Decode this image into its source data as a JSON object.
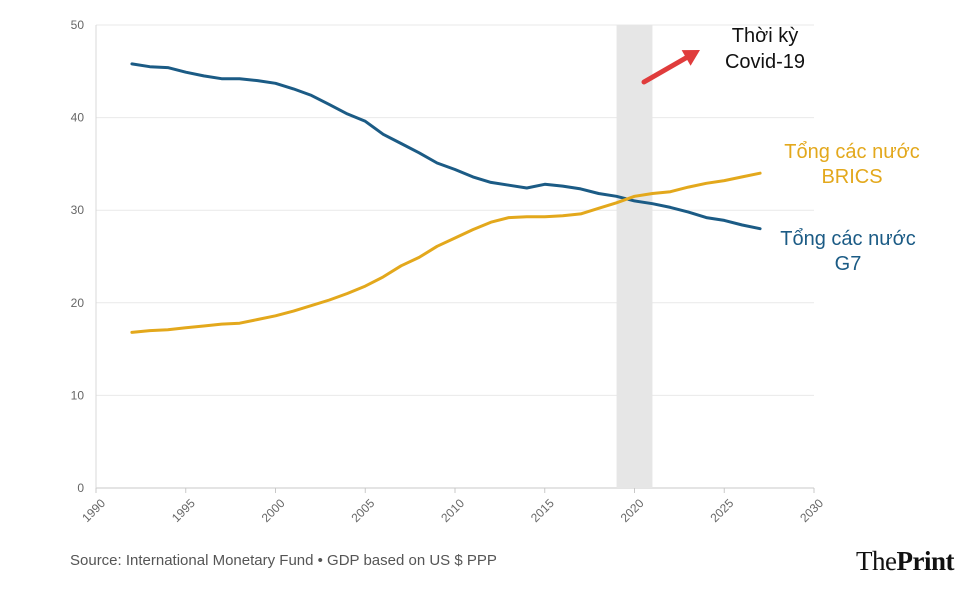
{
  "chart_data": {
    "type": "line",
    "xlim": [
      1990,
      2030
    ],
    "ylim": [
      0,
      50
    ],
    "x_ticks": [
      "1990",
      "1995",
      "2000",
      "2005",
      "2010",
      "2015",
      "2020",
      "2025",
      "2030"
    ],
    "y_ticks": [
      "0",
      "10",
      "20",
      "30",
      "40",
      "50"
    ],
    "grid": true,
    "series": [
      {
        "name": "Tổng các nước G7",
        "label_lines": [
          "Tổng các nước",
          "G7"
        ],
        "color": "#1b5b85",
        "points": [
          [
            1992,
            45.8
          ],
          [
            1993,
            45.5
          ],
          [
            1994,
            45.4
          ],
          [
            1995,
            44.9
          ],
          [
            1996,
            44.5
          ],
          [
            1997,
            44.2
          ],
          [
            1998,
            44.2
          ],
          [
            1999,
            44.0
          ],
          [
            2000,
            43.7
          ],
          [
            2001,
            43.1
          ],
          [
            2002,
            42.4
          ],
          [
            2003,
            41.4
          ],
          [
            2004,
            40.4
          ],
          [
            2005,
            39.6
          ],
          [
            2006,
            38.2
          ],
          [
            2007,
            37.2
          ],
          [
            2008,
            36.2
          ],
          [
            2009,
            35.1
          ],
          [
            2010,
            34.4
          ],
          [
            2011,
            33.6
          ],
          [
            2012,
            33.0
          ],
          [
            2013,
            32.7
          ],
          [
            2014,
            32.4
          ],
          [
            2015,
            32.8
          ],
          [
            2016,
            32.6
          ],
          [
            2017,
            32.3
          ],
          [
            2018,
            31.8
          ],
          [
            2019,
            31.5
          ],
          [
            2020,
            31.0
          ],
          [
            2021,
            30.7
          ],
          [
            2022,
            30.3
          ],
          [
            2023,
            29.8
          ],
          [
            2024,
            29.2
          ],
          [
            2025,
            28.9
          ],
          [
            2026,
            28.4
          ],
          [
            2027,
            28.0
          ]
        ]
      },
      {
        "name": "Tổng các nước BRICS",
        "label_lines": [
          "Tổng các nước",
          "BRICS"
        ],
        "color": "#e3a81c",
        "points": [
          [
            1992,
            16.8
          ],
          [
            1993,
            17.0
          ],
          [
            1994,
            17.1
          ],
          [
            1995,
            17.3
          ],
          [
            1996,
            17.5
          ],
          [
            1997,
            17.7
          ],
          [
            1998,
            17.8
          ],
          [
            1999,
            18.2
          ],
          [
            2000,
            18.6
          ],
          [
            2001,
            19.1
          ],
          [
            2002,
            19.7
          ],
          [
            2003,
            20.3
          ],
          [
            2004,
            21.0
          ],
          [
            2005,
            21.8
          ],
          [
            2006,
            22.8
          ],
          [
            2007,
            24.0
          ],
          [
            2008,
            24.9
          ],
          [
            2009,
            26.1
          ],
          [
            2010,
            27.0
          ],
          [
            2011,
            27.9
          ],
          [
            2012,
            28.7
          ],
          [
            2013,
            29.2
          ],
          [
            2014,
            29.3
          ],
          [
            2015,
            29.3
          ],
          [
            2016,
            29.4
          ],
          [
            2017,
            29.6
          ],
          [
            2018,
            30.2
          ],
          [
            2019,
            30.8
          ],
          [
            2020,
            31.5
          ],
          [
            2021,
            31.8
          ],
          [
            2022,
            32.0
          ],
          [
            2023,
            32.5
          ],
          [
            2024,
            32.9
          ],
          [
            2025,
            33.2
          ],
          [
            2026,
            33.6
          ],
          [
            2027,
            34.0
          ]
        ]
      }
    ],
    "annotation": {
      "label_lines": [
        "Thời kỳ",
        "Covid-19"
      ],
      "band": [
        2019,
        2021
      ],
      "band_color": "#e6e6e6",
      "arrow_color": "#e03c3c"
    }
  },
  "footer": {
    "source": "Source: International Monetary Fund • GDP based on US $ PPP",
    "logo_part1": "The",
    "logo_part2": "Print"
  }
}
